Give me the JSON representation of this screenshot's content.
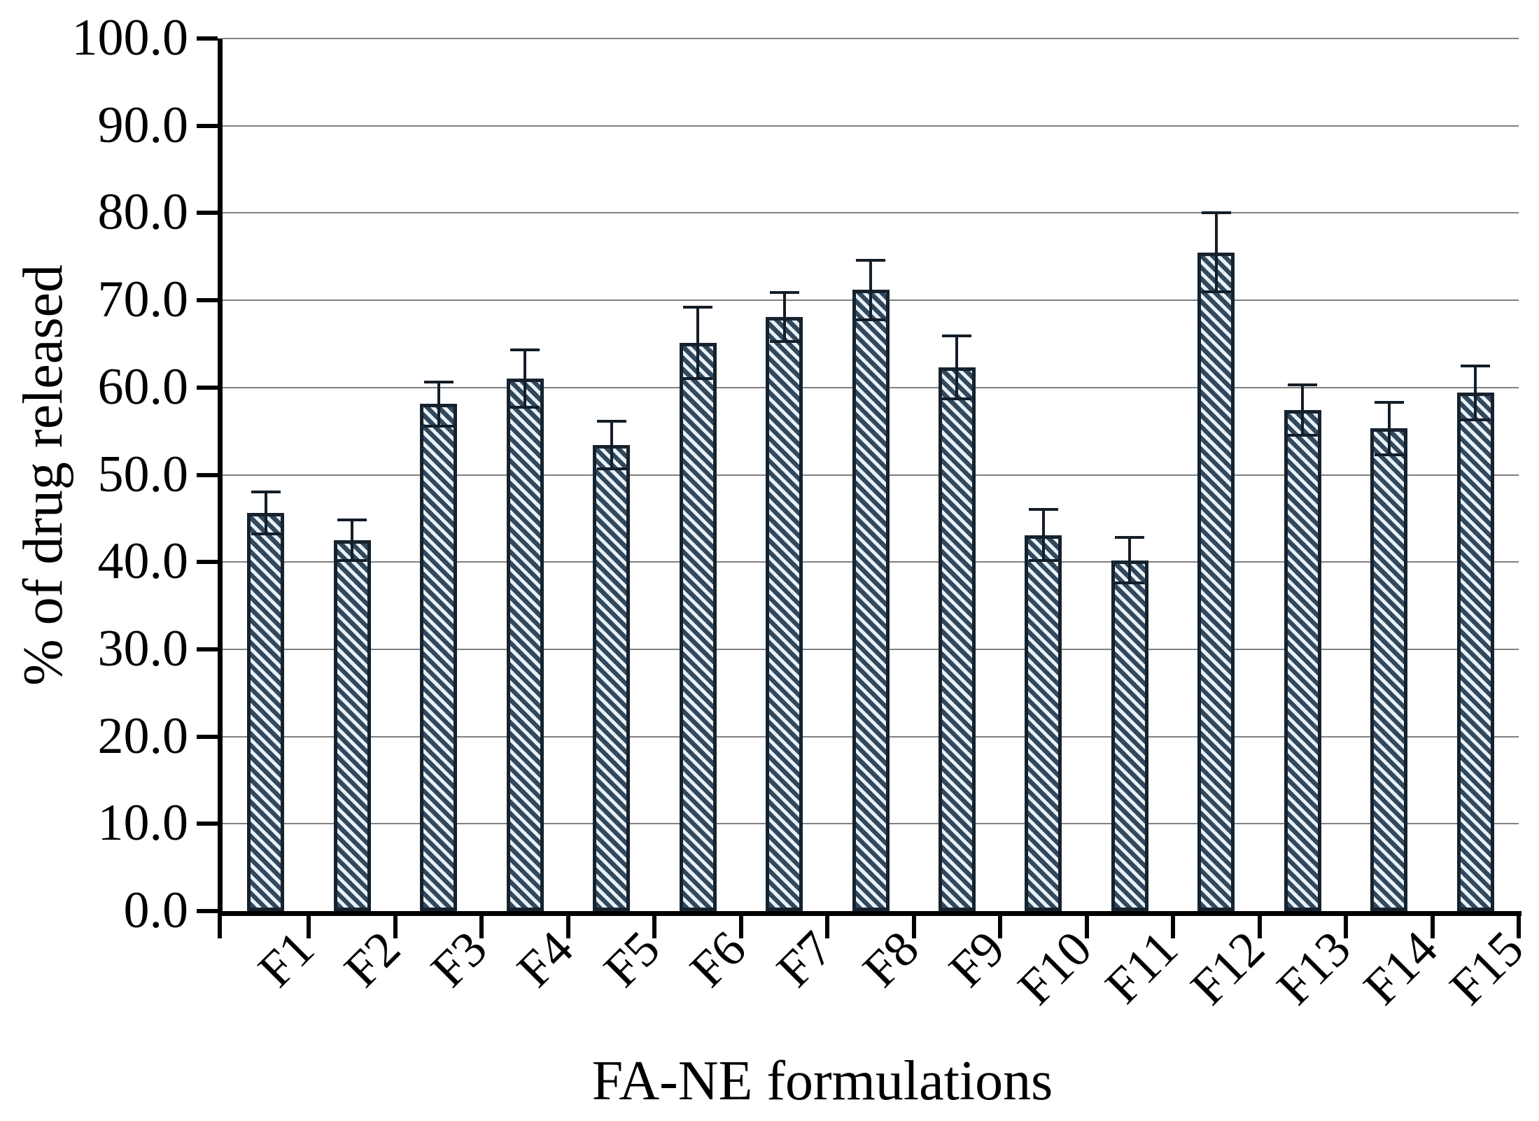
{
  "chart_data": {
    "type": "bar",
    "title": "",
    "xlabel": "FA-NE formulations",
    "ylabel": "% of drug released",
    "categories": [
      "F1",
      "F2",
      "F3",
      "F4",
      "F5",
      "F6",
      "F7",
      "F8",
      "F9",
      "F10",
      "F11",
      "F12",
      "F13",
      "F14",
      "F15"
    ],
    "series": [
      {
        "name": "% of drug released",
        "values": [
          45.6,
          42.5,
          58.1,
          61.0,
          53.4,
          65.1,
          68.1,
          71.2,
          62.3,
          43.1,
          40.2,
          75.5,
          57.4,
          55.3,
          59.4
        ],
        "errors": [
          2.4,
          2.3,
          2.5,
          3.3,
          2.7,
          4.1,
          2.8,
          3.4,
          3.6,
          2.9,
          2.6,
          4.5,
          2.9,
          3.0,
          3.1
        ]
      }
    ],
    "ylim": [
      0,
      100
    ],
    "ytick_step": 10,
    "y_tick_labels": [
      "0.0",
      "10.0",
      "20.0",
      "30.0",
      "40.0",
      "50.0",
      "60.0",
      "70.0",
      "80.0",
      "90.0",
      "100.0"
    ],
    "grid": "horizontal-only",
    "legend": "none",
    "bar_style": {
      "hatch": "diagonal-down",
      "fill_color": "#31485d",
      "stripe_color": "#e9f1f8",
      "border_color": "#16222e"
    },
    "error_bar_color": "#141e28",
    "gridline_color": "#808080",
    "axis_color": "#000000",
    "text_color": "#000000",
    "background_color": "#ffffff"
  }
}
